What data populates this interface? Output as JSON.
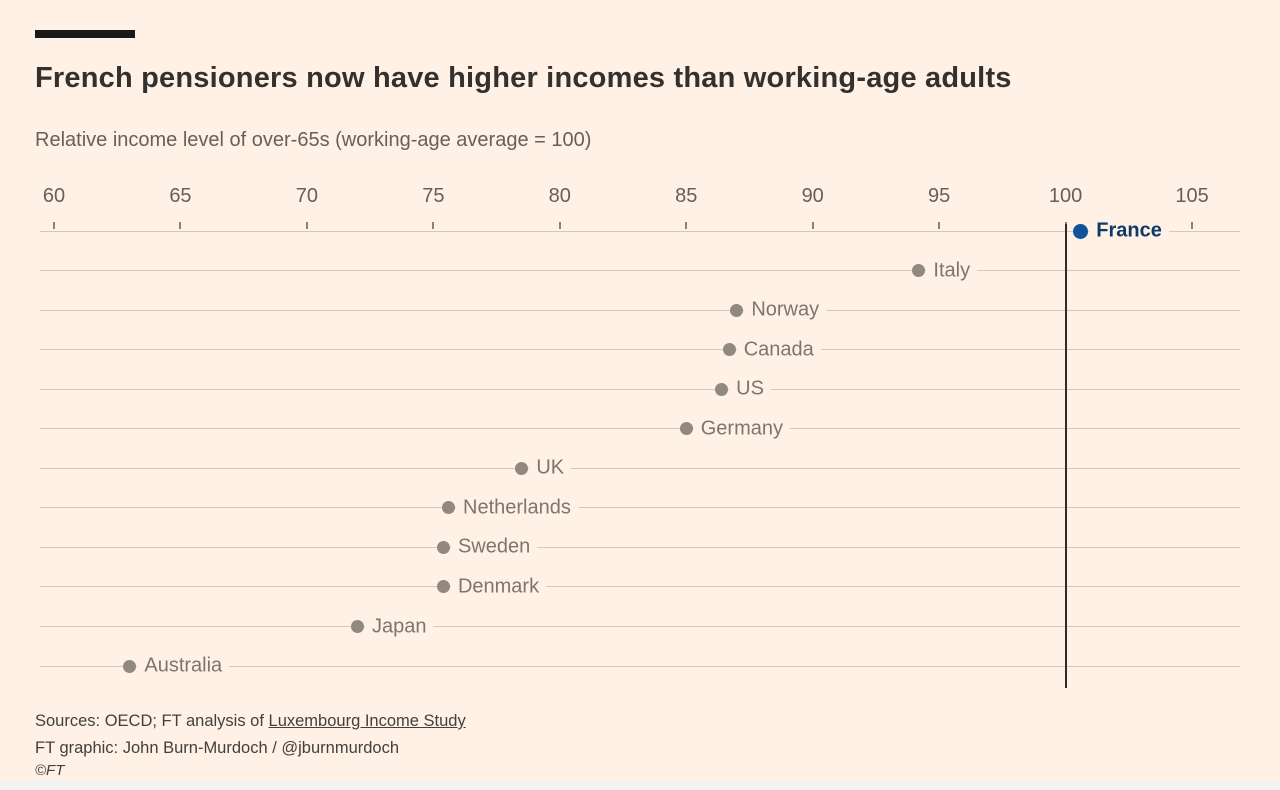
{
  "header": {
    "title": "French pensioners now have higher incomes than working-age adults",
    "subtitle": "Relative income level of over-65s (working-age average = 100)"
  },
  "chart_data": {
    "type": "scatter",
    "subtype": "horizontal-dot-plot",
    "title": "French pensioners now have higher incomes than working-age adults",
    "xlabel": "Relative income level of over-65s (working-age average = 100)",
    "x_axis": {
      "min": 60,
      "max": 107,
      "ticks": [
        60,
        65,
        70,
        75,
        80,
        85,
        90,
        95,
        100,
        105
      ]
    },
    "reference_line": {
      "value": 100
    },
    "grid": "horizontal-rows",
    "legend_position": "none",
    "series": [
      {
        "label": "France",
        "value": 100.6,
        "highlight": true
      },
      {
        "label": "Italy",
        "value": 94.2,
        "highlight": false
      },
      {
        "label": "Norway",
        "value": 87.0,
        "highlight": false
      },
      {
        "label": "Canada",
        "value": 86.7,
        "highlight": false
      },
      {
        "label": "US",
        "value": 86.4,
        "highlight": false
      },
      {
        "label": "Germany",
        "value": 85.0,
        "highlight": false
      },
      {
        "label": "UK",
        "value": 78.5,
        "highlight": false
      },
      {
        "label": "Netherlands",
        "value": 75.6,
        "highlight": false
      },
      {
        "label": "Sweden",
        "value": 75.4,
        "highlight": false
      },
      {
        "label": "Denmark",
        "value": 75.4,
        "highlight": false
      },
      {
        "label": "Japan",
        "value": 72.0,
        "highlight": false
      },
      {
        "label": "Australia",
        "value": 63.0,
        "highlight": false
      }
    ]
  },
  "footer": {
    "sources_prefix": "Sources: OECD; FT analysis of ",
    "sources_link": "Luxembourg Income Study",
    "credit": "FT graphic: John Burn-Murdoch / @jburnmurdoch",
    "copyright": "©FT"
  },
  "colors": {
    "background": "#FFF1E5",
    "top_bar": "#1A1817",
    "title_text": "#33302E",
    "subtitle_text": "#66605B",
    "axis_text": "#66605B",
    "tick": "#8A837B",
    "gridline": "#D4C8BB",
    "dot": "#918980",
    "label": "#7D766E",
    "highlight_dot": "#0F5499",
    "highlight_text": "#0D3B66",
    "reference_line": "#2E2B28",
    "footer_text": "#43403D",
    "bottom_strip": "#F2F2F2"
  }
}
